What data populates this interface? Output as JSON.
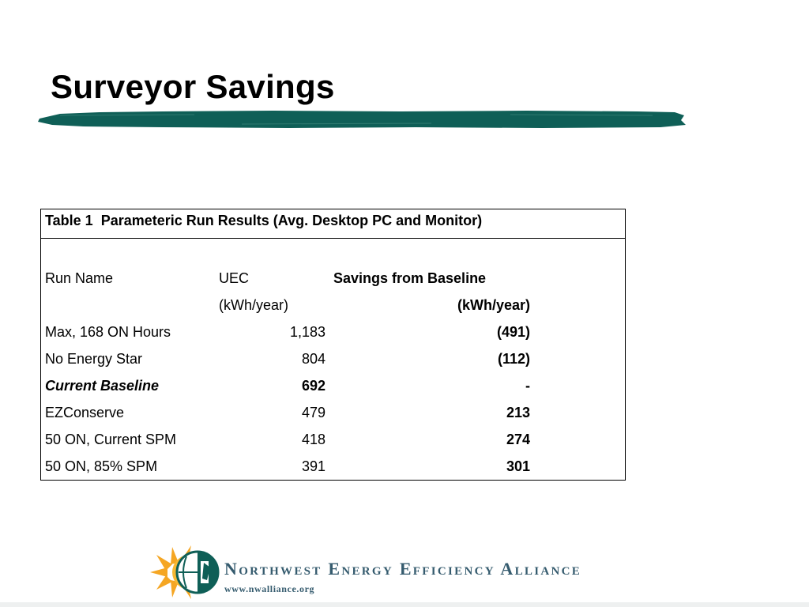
{
  "slide": {
    "title": "Surveyor Savings"
  },
  "table": {
    "caption": "Table 1  Parameteric Run Results (Avg. Desktop PC and Monitor)",
    "headers": {
      "run_name": "Run Name",
      "uec": "UEC",
      "uec_unit": "(kWh/year)",
      "savings": "Savings from Baseline",
      "savings_unit": "(kWh/year)"
    },
    "rows": [
      {
        "name": "Max, 168 ON Hours",
        "uec": "1,183",
        "savings": "(491)"
      },
      {
        "name": "No Energy Star",
        "uec": "804",
        "savings": "(112)"
      },
      {
        "name": "Current Baseline",
        "uec": "692",
        "savings": "-"
      },
      {
        "name": "EZConserve",
        "uec": "479",
        "savings": "213"
      },
      {
        "name": "50 ON, Current SPM",
        "uec": "418",
        "savings": "274"
      },
      {
        "name": "50 ON, 85% SPM",
        "uec": "391",
        "savings": "301"
      }
    ]
  },
  "footer": {
    "org_name": "Northwest Energy Efficiency Alliance",
    "url": "www.nwalliance.org",
    "logo_icon": "sun-globe-logo-icon"
  },
  "colors": {
    "accent_green": "#0f5f57",
    "logo_orange": "#f5a623",
    "logo_text": "#355b6e"
  }
}
